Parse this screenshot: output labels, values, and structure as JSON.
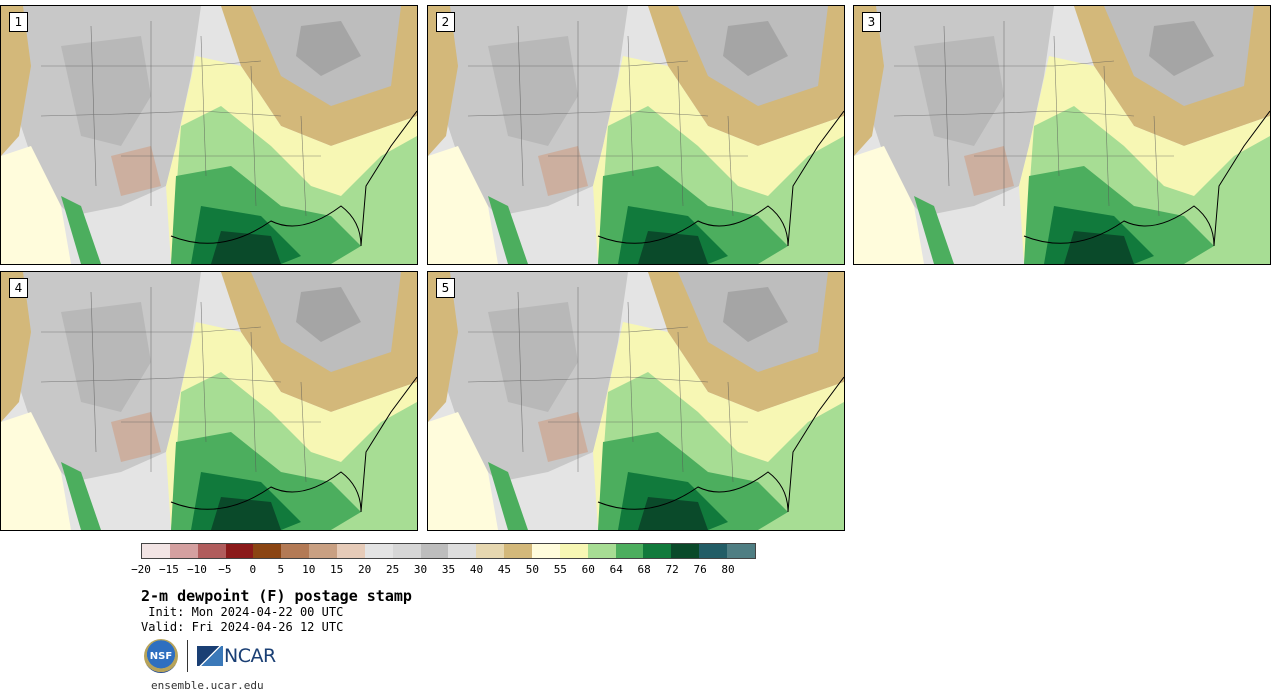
{
  "panels": [
    {
      "label": "1"
    },
    {
      "label": "2"
    },
    {
      "label": "3"
    },
    {
      "label": "4"
    },
    {
      "label": "5"
    }
  ],
  "colorbar": {
    "colors": [
      "#f2e4e4",
      "#d4a0a0",
      "#b05c5c",
      "#8b1a1a",
      "#8b4513",
      "#b37a55",
      "#c9a082",
      "#e6cbb8",
      "#e3e3e3",
      "#d6d6d6",
      "#bdbdbd",
      "#dedede",
      "#e6d7b0",
      "#d3b87a",
      "#fffcdc",
      "#f7f7b4",
      "#a7dd94",
      "#4cae5e",
      "#117a3c",
      "#0a4a2a",
      "#225d66",
      "#4f7e83"
    ],
    "tick_labels": [
      "−20",
      "−15",
      "−10",
      "−5",
      "0",
      "5",
      "10",
      "15",
      "20",
      "25",
      "30",
      "35",
      "40",
      "45",
      "50",
      "55",
      "60",
      "64",
      "68",
      "72",
      "76",
      "80"
    ]
  },
  "title": "2-m dewpoint (F) postage stamp",
  "init": " Init: Mon 2024-04-22 00 UTC",
  "valid": "Valid: Fri 2024-04-26 12 UTC",
  "logos": {
    "nsf": "NSF",
    "ncar": "NCAR"
  },
  "footer_url": "ensemble.ucar.edu"
}
